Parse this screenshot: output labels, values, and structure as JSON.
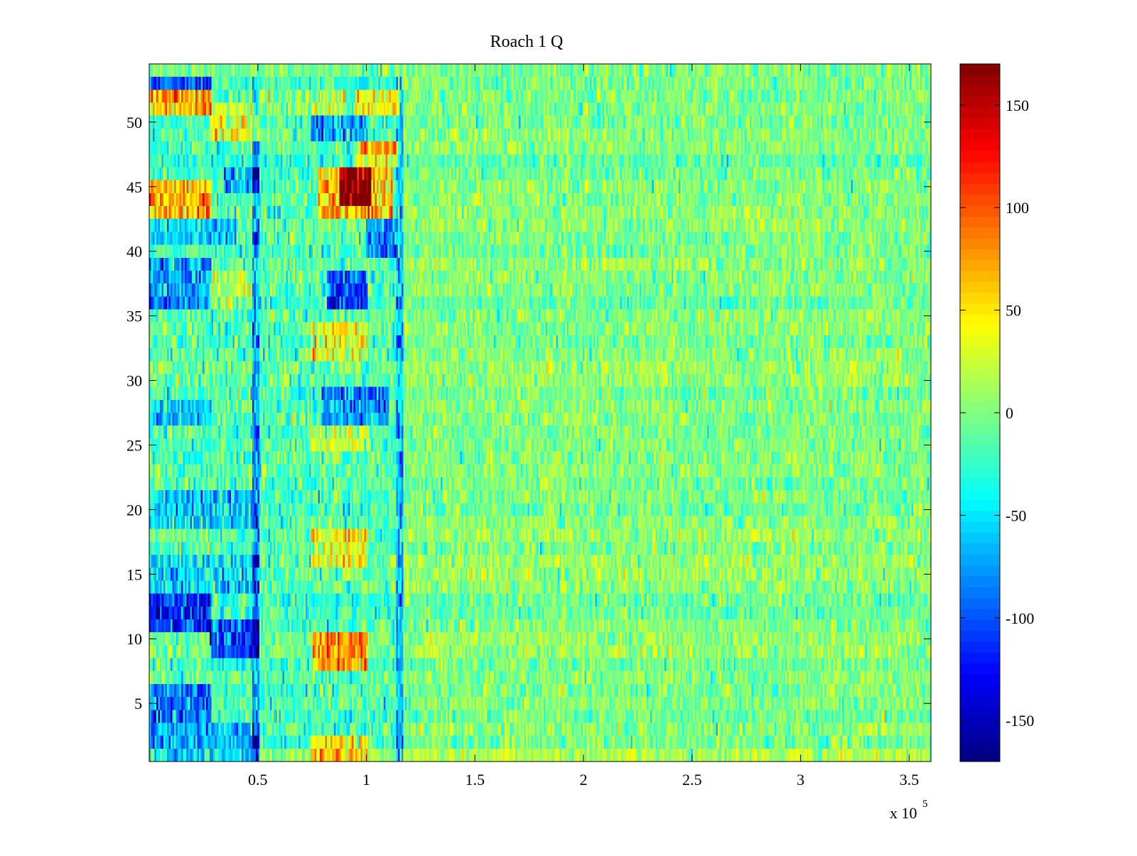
{
  "chart_data": {
    "type": "heatmap",
    "title": "Roach 1 Q",
    "xlabel": "",
    "ylabel": "",
    "x_multiplier_label": "x 10",
    "x_multiplier_exponent": "5",
    "xlim": [
      0,
      360000
    ],
    "ylim": [
      0.5,
      54.5
    ],
    "x_ticks": [
      {
        "value": 50000,
        "label": "0.5"
      },
      {
        "value": 100000,
        "label": "1"
      },
      {
        "value": 150000,
        "label": "1.5"
      },
      {
        "value": 200000,
        "label": "2"
      },
      {
        "value": 250000,
        "label": "2.5"
      },
      {
        "value": 300000,
        "label": "3"
      },
      {
        "value": 350000,
        "label": "3.5"
      }
    ],
    "y_ticks": [
      5,
      10,
      15,
      20,
      25,
      30,
      35,
      40,
      45,
      50
    ],
    "rows": 54,
    "colormap": "jet",
    "colorbar": {
      "range": [
        -170,
        170
      ],
      "ticks": [
        150,
        100,
        50,
        0,
        -50,
        -100,
        -150
      ]
    },
    "background_noise": {
      "mean": 0,
      "std": 18
    },
    "features": [
      {
        "x": [
          0,
          28000
        ],
        "y": [
          51,
          53
        ],
        "value": 110
      },
      {
        "x": [
          28000,
          50000
        ],
        "y": [
          49,
          52
        ],
        "value": 60
      },
      {
        "x": [
          50000,
          90000
        ],
        "y": [
          51,
          53
        ],
        "value": 35
      },
      {
        "x": [
          95000,
          115000
        ],
        "y": [
          51,
          53
        ],
        "value": 75
      },
      {
        "x": [
          0,
          28000
        ],
        "y": [
          53,
          54
        ],
        "value": -100
      },
      {
        "x": [
          0,
          28000
        ],
        "y": [
          54,
          55
        ],
        "value": 40
      },
      {
        "x": [
          100000,
          117000
        ],
        "y": [
          54,
          55
        ],
        "value": 60
      },
      {
        "x": [
          75000,
          80000
        ],
        "y": [
          49,
          51
        ],
        "value": -110
      },
      {
        "x": [
          80000,
          100000
        ],
        "y": [
          49,
          51
        ],
        "value": -60
      },
      {
        "x": [
          0,
          28000
        ],
        "y": [
          43,
          46
        ],
        "value": 105
      },
      {
        "x": [
          78000,
          112000
        ],
        "y": [
          43,
          47
        ],
        "value": 100
      },
      {
        "x": [
          88000,
          102000
        ],
        "y": [
          44,
          47
        ],
        "value": 135
      },
      {
        "x": [
          95000,
          115000
        ],
        "y": [
          47,
          49
        ],
        "value": 80
      },
      {
        "x": [
          35000,
          50000
        ],
        "y": [
          45,
          47
        ],
        "value": -70
      },
      {
        "x": [
          0,
          40000
        ],
        "y": [
          41,
          43
        ],
        "value": -60
      },
      {
        "x": [
          100000,
          113000
        ],
        "y": [
          40,
          43
        ],
        "value": -90
      },
      {
        "x": [
          0,
          28000
        ],
        "y": [
          36,
          40
        ],
        "value": -75
      },
      {
        "x": [
          82000,
          100000
        ],
        "y": [
          36,
          39
        ],
        "value": -110
      },
      {
        "x": [
          28000,
          50000
        ],
        "y": [
          36,
          39
        ],
        "value": 40
      },
      {
        "x": [
          75000,
          100000
        ],
        "y": [
          32,
          35
        ],
        "value": 70
      },
      {
        "x": [
          80000,
          110000
        ],
        "y": [
          27,
          30
        ],
        "value": -80
      },
      {
        "x": [
          0,
          28000
        ],
        "y": [
          27,
          29
        ],
        "value": -60
      },
      {
        "x": [
          75000,
          100000
        ],
        "y": [
          25,
          27
        ],
        "value": 50
      },
      {
        "x": [
          0,
          50000
        ],
        "y": [
          19,
          22
        ],
        "value": -45
      },
      {
        "x": [
          75000,
          100000
        ],
        "y": [
          16,
          19
        ],
        "value": 60
      },
      {
        "x": [
          0,
          50000
        ],
        "y": [
          14,
          17
        ],
        "value": -55
      },
      {
        "x": [
          0,
          28000
        ],
        "y": [
          11,
          14
        ],
        "value": -120
      },
      {
        "x": [
          28000,
          50000
        ],
        "y": [
          9,
          12
        ],
        "value": -110
      },
      {
        "x": [
          76000,
          100000
        ],
        "y": [
          8,
          11
        ],
        "value": 110
      },
      {
        "x": [
          0,
          28000
        ],
        "y": [
          4,
          7
        ],
        "value": -85
      },
      {
        "x": [
          0,
          50000
        ],
        "y": [
          1,
          4
        ],
        "value": -65
      },
      {
        "x": [
          75000,
          100000
        ],
        "y": [
          1,
          3
        ],
        "value": 80
      },
      {
        "x": [
          48000,
          50000
        ],
        "y": [
          0.5,
          54.5
        ],
        "value": -80
      },
      {
        "x": [
          114000,
          117000
        ],
        "y": [
          0.5,
          54.5
        ],
        "value": -60
      },
      {
        "x": [
          0,
          117000
        ],
        "y": [
          0.5,
          54.5
        ],
        "value": -20
      }
    ]
  }
}
